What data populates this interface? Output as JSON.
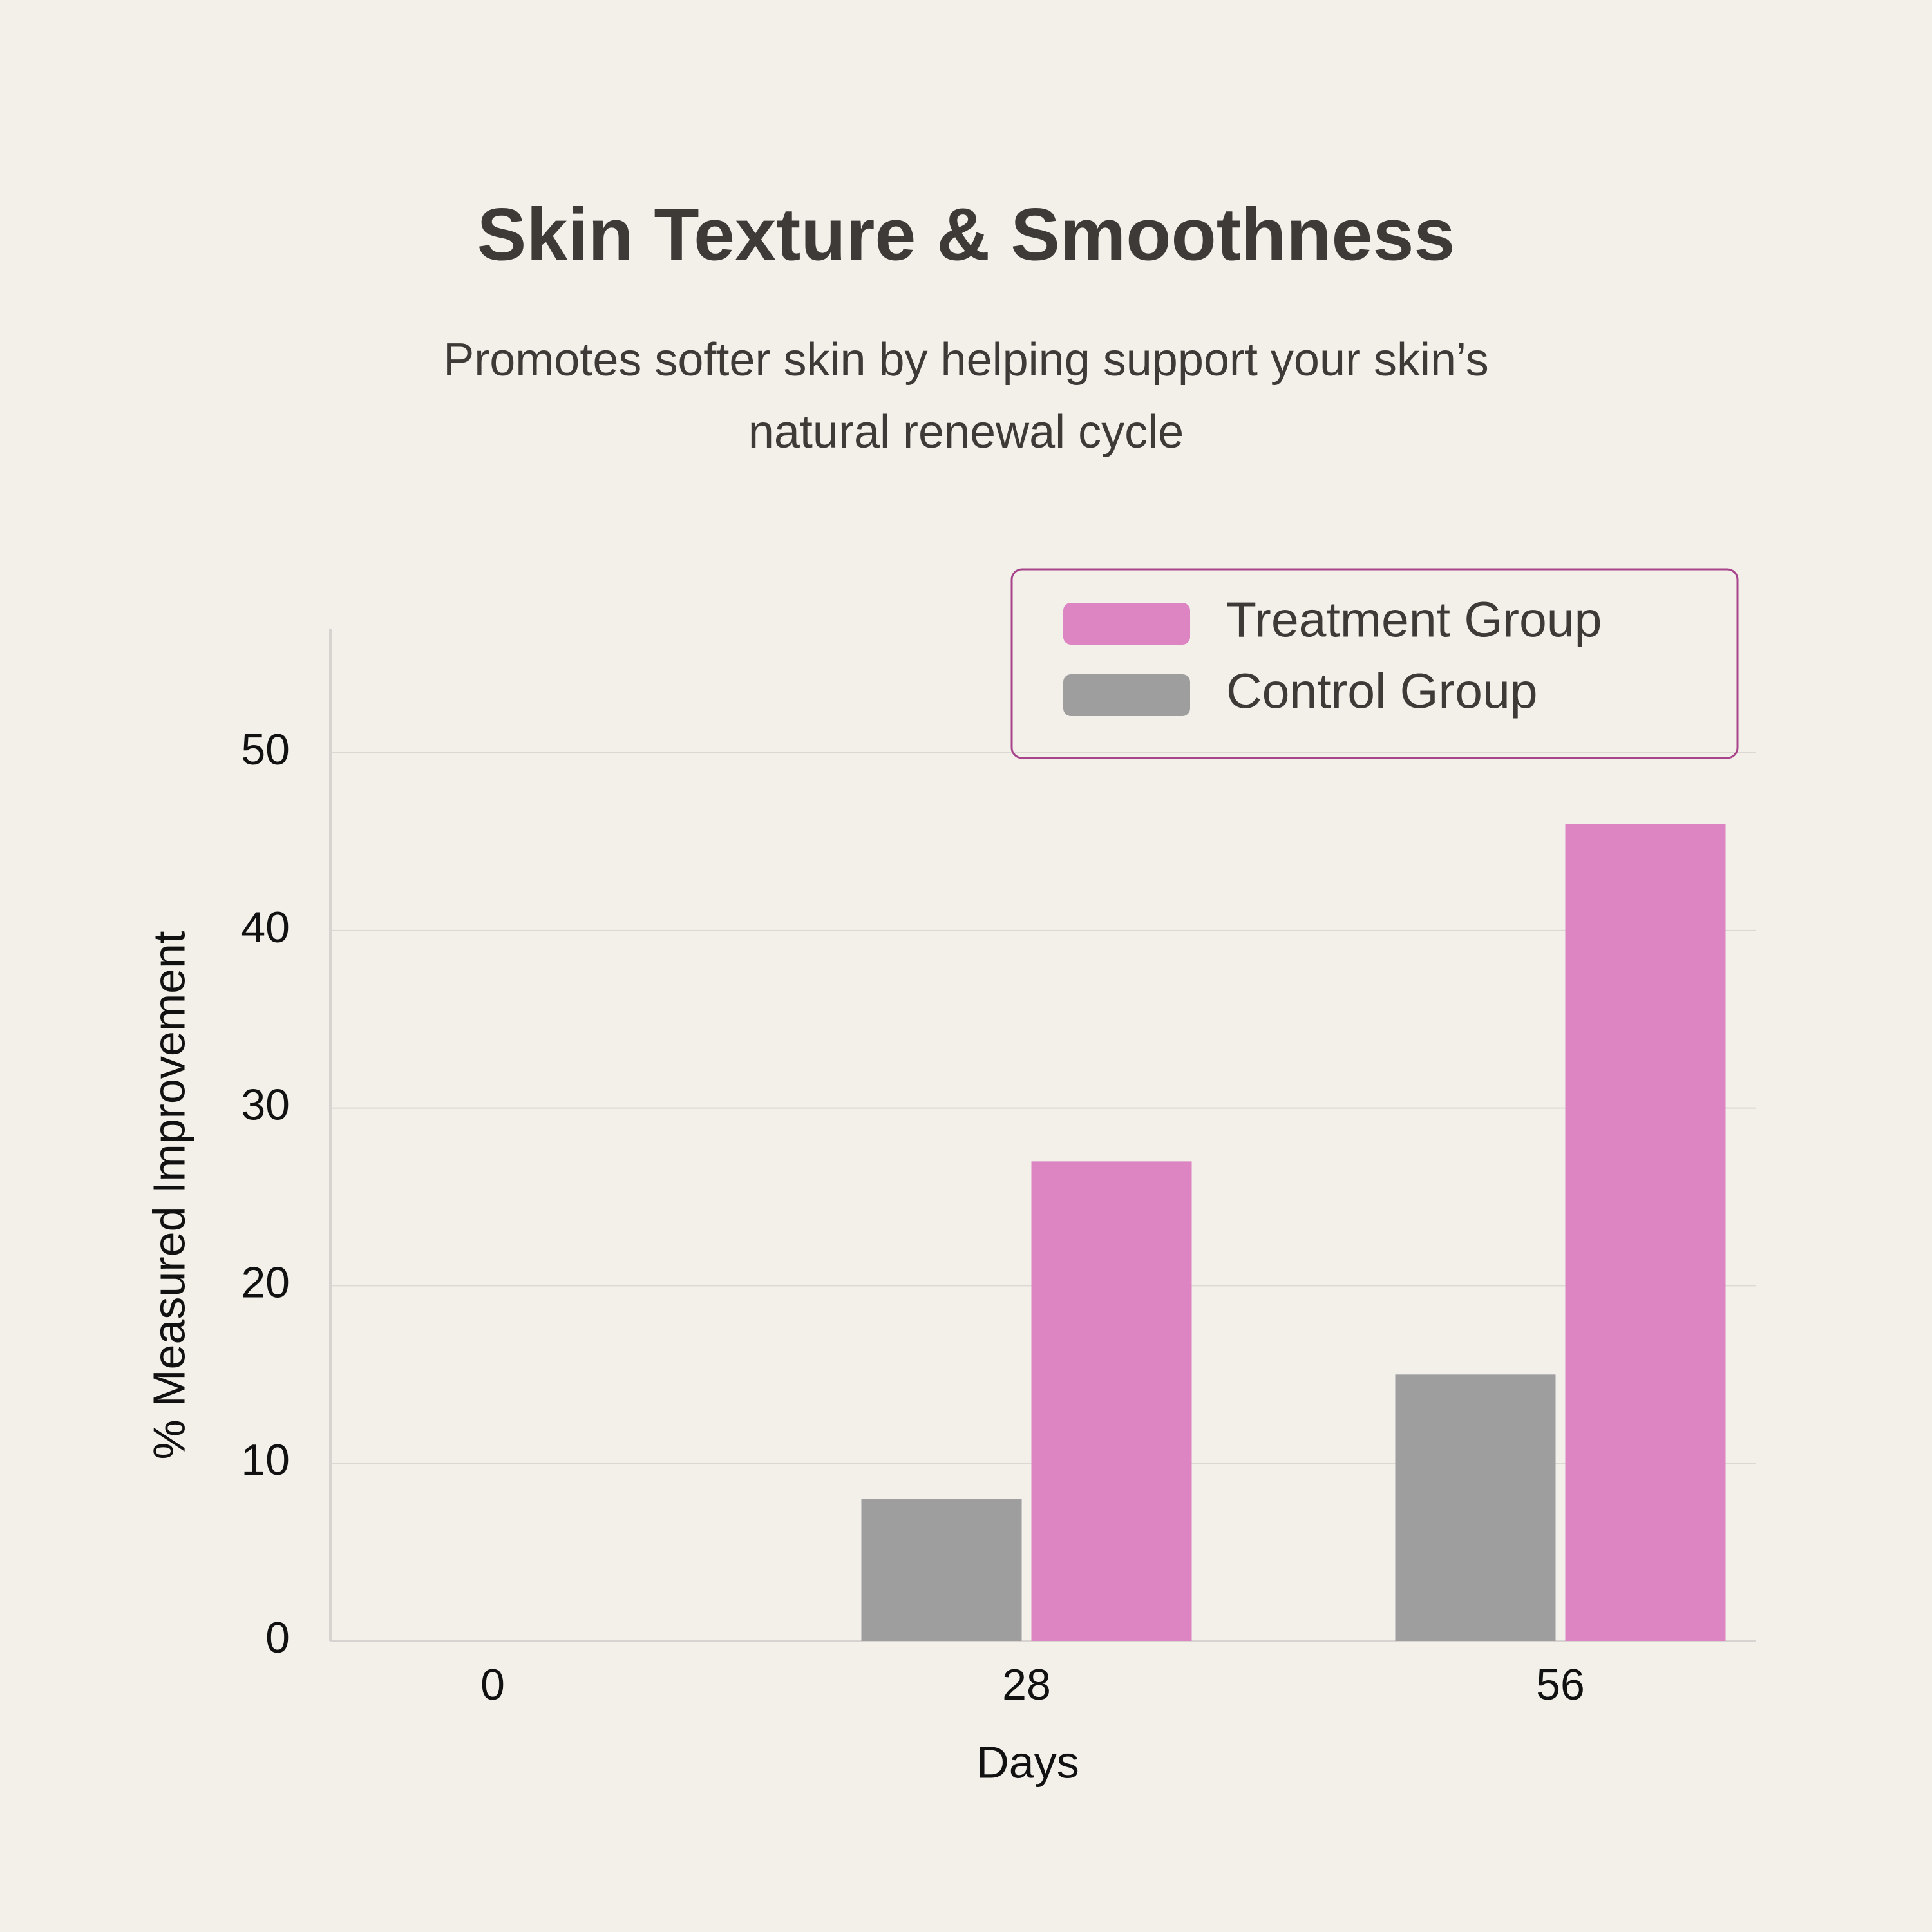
{
  "chart_data": {
    "type": "bar",
    "title": "Skin Texture & Smoothness",
    "subtitle": [
      "Promotes softer skin by helping support your skin’s",
      "natural renewal cycle"
    ],
    "x_label": "Days",
    "y_label": "% Measured Improvement",
    "categories": [
      "0",
      "28",
      "56"
    ],
    "series": [
      {
        "name": "Treatment Group",
        "color": "#dd84c3",
        "values": [
          0,
          27,
          46
        ]
      },
      {
        "name": "Control Group",
        "color": "#9e9e9e",
        "values": [
          0,
          8,
          15
        ]
      }
    ],
    "ylim": [
      0,
      57
    ],
    "yticks": [
      0,
      10,
      20,
      30,
      40,
      50
    ],
    "grid": true,
    "legend": "upper right"
  }
}
